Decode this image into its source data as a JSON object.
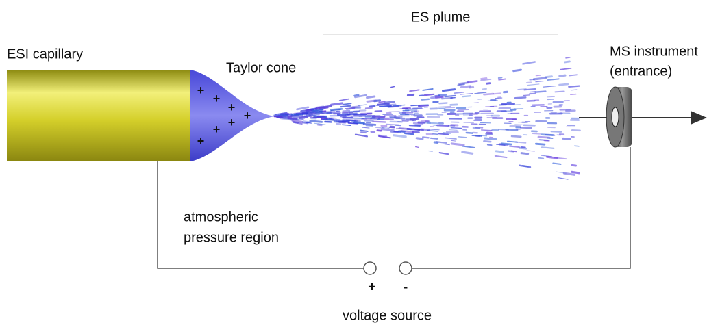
{
  "title": "ES plume",
  "capillary": {
    "label": "ESI capillary"
  },
  "cone": {
    "label": "Taylor cone",
    "charges": [
      "+",
      "+",
      "+",
      "+",
      "+",
      "+",
      "+"
    ]
  },
  "instrument": {
    "label": "MS instrument",
    "sublabel": "(entrance)"
  },
  "region": {
    "line1": "atmospheric",
    "line2": "pressure region"
  },
  "voltage": {
    "positive": "+",
    "negative": "-",
    "label": "voltage source"
  }
}
